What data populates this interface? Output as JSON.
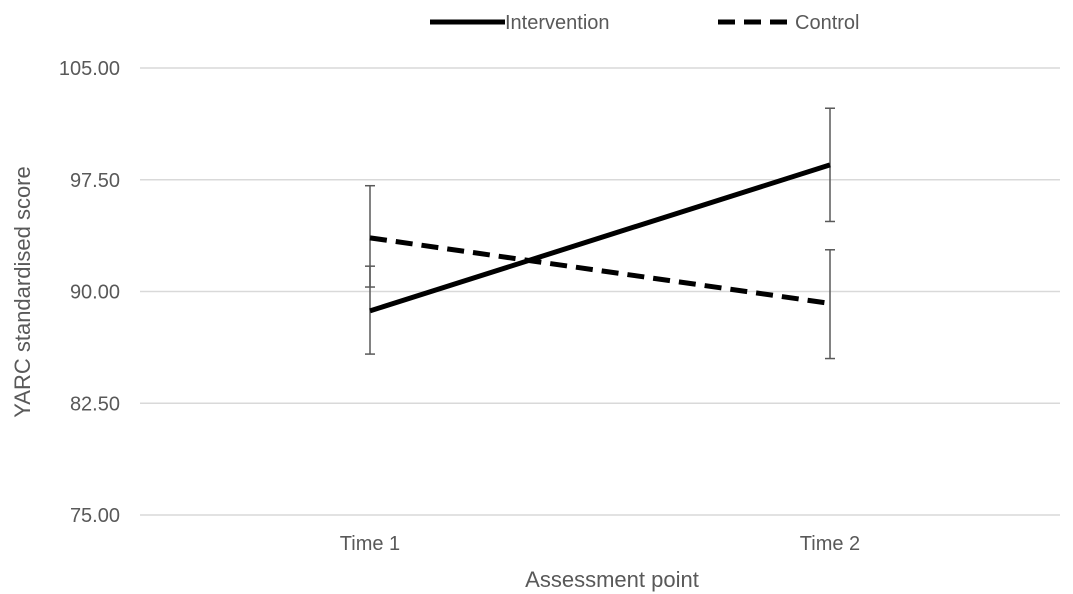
{
  "chart_data": {
    "type": "line",
    "title": "",
    "xlabel": "Assessment point",
    "ylabel": "YARC standardised score",
    "categories": [
      "Time 1",
      "Time 2"
    ],
    "ylim": [
      75,
      105
    ],
    "yticks": [
      "75.00",
      "82.50",
      "90.00",
      "97.50",
      "105.00"
    ],
    "grid": true,
    "legend_position": "top",
    "series": [
      {
        "name": "Intervention",
        "style": "solid",
        "color": "#000000",
        "values": [
          88.7,
          98.5
        ],
        "error_low": [
          85.8,
          94.7
        ],
        "error_high": [
          91.7,
          102.3
        ]
      },
      {
        "name": "Control",
        "style": "dashed",
        "color": "#000000",
        "values": [
          93.6,
          89.2
        ],
        "error_low": [
          90.3,
          85.5
        ],
        "error_high": [
          97.1,
          92.8
        ]
      }
    ]
  }
}
